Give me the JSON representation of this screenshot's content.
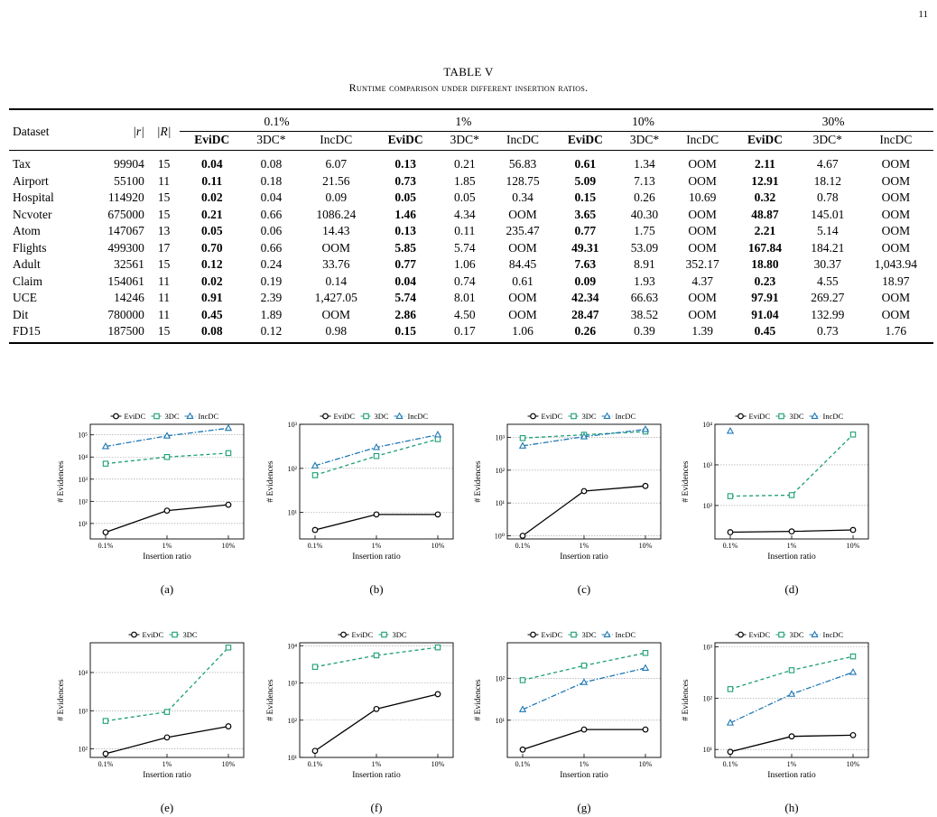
{
  "page_number": "11",
  "table": {
    "title": "TABLE V",
    "caption": "Runtime comparison under different insertion ratios.",
    "header_dataset": "Dataset",
    "header_r": "|r|",
    "header_R": "|R|",
    "ratio_groups": [
      "0.1%",
      "1%",
      "10%",
      "30%"
    ],
    "methods": [
      "EviDC",
      "3DC*",
      "IncDC"
    ],
    "rows": [
      {
        "name": "Tax",
        "r": "99904",
        "R": "15",
        "v": [
          "0.04",
          "0.08",
          "6.07",
          "0.13",
          "0.21",
          "56.83",
          "0.61",
          "1.34",
          "OOM",
          "2.11",
          "4.67",
          "OOM"
        ]
      },
      {
        "name": "Airport",
        "r": "55100",
        "R": "11",
        "v": [
          "0.11",
          "0.18",
          "21.56",
          "0.73",
          "1.85",
          "128.75",
          "5.09",
          "7.13",
          "OOM",
          "12.91",
          "18.12",
          "OOM"
        ]
      },
      {
        "name": "Hospital",
        "r": "114920",
        "R": "15",
        "v": [
          "0.02",
          "0.04",
          "0.09",
          "0.05",
          "0.05",
          "0.34",
          "0.15",
          "0.26",
          "10.69",
          "0.32",
          "0.78",
          "OOM"
        ]
      },
      {
        "name": "Ncvoter",
        "r": "675000",
        "R": "15",
        "v": [
          "0.21",
          "0.66",
          "1086.24",
          "1.46",
          "4.34",
          "OOM",
          "3.65",
          "40.30",
          "OOM",
          "48.87",
          "145.01",
          "OOM"
        ]
      },
      {
        "name": "Atom",
        "r": "147067",
        "R": "13",
        "v": [
          "0.05",
          "0.06",
          "14.43",
          "0.13",
          "0.11",
          "235.47",
          "0.77",
          "1.75",
          "OOM",
          "2.21",
          "5.14",
          "OOM"
        ]
      },
      {
        "name": "Flights",
        "r": "499300",
        "R": "17",
        "v": [
          "0.70",
          "0.66",
          "OOM",
          "5.85",
          "5.74",
          "OOM",
          "49.31",
          "53.09",
          "OOM",
          "167.84",
          "184.21",
          "OOM"
        ]
      },
      {
        "name": "Adult",
        "r": "32561",
        "R": "15",
        "v": [
          "0.12",
          "0.24",
          "33.76",
          "0.77",
          "1.06",
          "84.45",
          "7.63",
          "8.91",
          "352.17",
          "18.80",
          "30.37",
          "1,043.94"
        ]
      },
      {
        "name": "Claim",
        "r": "154061",
        "R": "11",
        "v": [
          "0.02",
          "0.19",
          "0.14",
          "0.04",
          "0.74",
          "0.61",
          "0.09",
          "1.93",
          "4.37",
          "0.23",
          "4.55",
          "18.97"
        ]
      },
      {
        "name": "UCE",
        "r": "14246",
        "R": "11",
        "v": [
          "0.91",
          "2.39",
          "1,427.05",
          "5.74",
          "8.01",
          "OOM",
          "42.34",
          "66.63",
          "OOM",
          "97.91",
          "269.27",
          "OOM"
        ]
      },
      {
        "name": "Dit",
        "r": "780000",
        "R": "11",
        "v": [
          "0.45",
          "1.89",
          "OOM",
          "2.86",
          "4.50",
          "OOM",
          "28.47",
          "38.52",
          "OOM",
          "91.04",
          "132.99",
          "OOM"
        ]
      },
      {
        "name": "FD15",
        "r": "187500",
        "R": "15",
        "v": [
          "0.08",
          "0.12",
          "0.98",
          "0.15",
          "0.17",
          "1.06",
          "0.26",
          "0.39",
          "1.39",
          "0.45",
          "0.73",
          "1.76"
        ]
      }
    ]
  },
  "colors": {
    "EviDC": "#000000",
    "3DC": "#1b9e77",
    "IncDC": "#1f78b4"
  },
  "chart_data": [
    {
      "type": "line",
      "label": "(a)",
      "log_y": true,
      "xlabel": "Insertion ratio",
      "ylabel": "# Evidences",
      "x": [
        "0.1%",
        "1%",
        "10%"
      ],
      "ylim": [
        2,
        300000
      ],
      "yticks": [
        10,
        100,
        1000,
        10000,
        100000
      ],
      "series": [
        {
          "name": "EviDC",
          "values": [
            4,
            38,
            70
          ]
        },
        {
          "name": "3DC",
          "values": [
            5000,
            10000,
            15000
          ]
        },
        {
          "name": "IncDC",
          "values": [
            30000,
            90000,
            200000
          ]
        }
      ]
    },
    {
      "type": "line",
      "label": "(b)",
      "log_y": true,
      "xlabel": "Insertion ratio",
      "ylabel": "# Evidences",
      "x": [
        "0.1%",
        "1%",
        "10%"
      ],
      "ylim": [
        2.5,
        1000
      ],
      "yticks": [
        10,
        100,
        1000
      ],
      "series": [
        {
          "name": "EviDC",
          "values": [
            4,
            9,
            9
          ]
        },
        {
          "name": "3DC",
          "values": [
            70,
            190,
            460
          ]
        },
        {
          "name": "IncDC",
          "values": [
            115,
            300,
            580
          ]
        }
      ]
    },
    {
      "type": "line",
      "label": "(c)",
      "log_y": true,
      "xlabel": "Insertion ratio",
      "ylabel": "# Evidences",
      "x": [
        "0.1%",
        "1%",
        "10%"
      ],
      "ylim": [
        0.8,
        2500
      ],
      "yticks": [
        1,
        10,
        100,
        1000
      ],
      "series": [
        {
          "name": "EviDC",
          "values": [
            1,
            23,
            33
          ]
        },
        {
          "name": "3DC",
          "values": [
            950,
            1200,
            1500
          ]
        },
        {
          "name": "IncDC",
          "values": [
            550,
            1050,
            1750
          ]
        }
      ]
    },
    {
      "type": "line",
      "label": "(d)",
      "log_y": true,
      "xlabel": "Insertion ratio",
      "ylabel": "# Evidences",
      "x": [
        "0.1%",
        "1%",
        "10%"
      ],
      "ylim": [
        15,
        10000
      ],
      "yticks": [
        100,
        1000,
        10000
      ],
      "series": [
        {
          "name": "EviDC",
          "values": [
            22,
            23,
            25
          ]
        },
        {
          "name": "3DC",
          "values": [
            170,
            180,
            5600
          ]
        },
        {
          "name": "IncDC",
          "values": [
            6800,
            null,
            null
          ]
        }
      ]
    },
    {
      "type": "line",
      "label": "(e)",
      "log_y": true,
      "xlabel": "Insertion ratio",
      "ylabel": "# Evidences",
      "x": [
        "0.1%",
        "1%",
        "10%"
      ],
      "ylim": [
        60,
        60000
      ],
      "yticks": [
        100,
        1000,
        10000
      ],
      "series": [
        {
          "name": "EviDC",
          "values": [
            75,
            200,
            390
          ]
        },
        {
          "name": "3DC",
          "values": [
            540,
            930,
            45000
          ]
        }
      ]
    },
    {
      "type": "line",
      "label": "(f)",
      "log_y": true,
      "xlabel": "Insertion ratio",
      "ylabel": "# Evidences",
      "x": [
        "0.1%",
        "1%",
        "10%"
      ],
      "ylim": [
        10,
        12000
      ],
      "yticks": [
        10,
        100,
        1000,
        10000
      ],
      "series": [
        {
          "name": "EviDC",
          "values": [
            15,
            200,
            500
          ]
        },
        {
          "name": "3DC",
          "values": [
            2700,
            5500,
            9000
          ]
        }
      ]
    },
    {
      "type": "line",
      "label": "(g)",
      "log_y": true,
      "xlabel": "Insertion ratio",
      "ylabel": "# Evidences",
      "x": [
        "0.1%",
        "1%",
        "10%"
      ],
      "ylim": [
        1.3,
        700
      ],
      "yticks": [
        10,
        100
      ],
      "series": [
        {
          "name": "EviDC",
          "values": [
            2,
            6,
            6
          ]
        },
        {
          "name": "3DC",
          "values": [
            90,
            200,
            400
          ]
        },
        {
          "name": "IncDC",
          "values": [
            18,
            80,
            175
          ]
        }
      ]
    },
    {
      "type": "line",
      "label": "(h)",
      "log_y": true,
      "xlabel": "Insertion ratio",
      "ylabel": "# Evidences",
      "x": [
        "0.1%",
        "1%",
        "10%"
      ],
      "ylim": [
        7,
        1200
      ],
      "yticks": [
        10,
        100,
        1000
      ],
      "series": [
        {
          "name": "EviDC",
          "values": [
            9,
            18,
            19
          ]
        },
        {
          "name": "3DC",
          "values": [
            150,
            350,
            650
          ]
        },
        {
          "name": "IncDC",
          "values": [
            33,
            120,
            320
          ]
        }
      ]
    }
  ]
}
